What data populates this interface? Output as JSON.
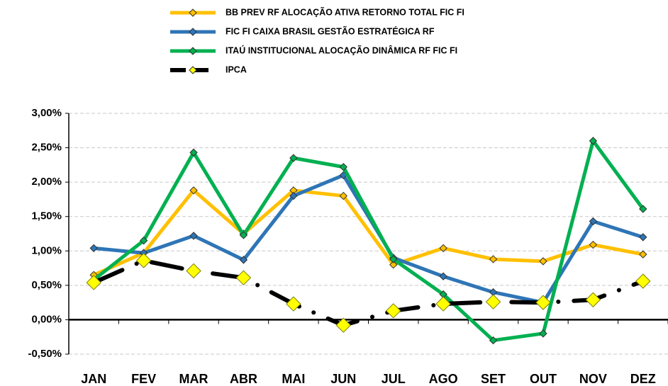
{
  "chart_data": {
    "type": "line",
    "categories": [
      "JAN",
      "FEV",
      "MAR",
      "ABR",
      "MAI",
      "JUN",
      "JUL",
      "AGO",
      "SET",
      "OUT",
      "NOV",
      "DEZ"
    ],
    "series": [
      {
        "name": "BB PREV RF ALOCAÇÃO ATIVA RETORNO TOTAL FIC FI",
        "color": "#ffc000",
        "values": [
          0.65,
          0.97,
          1.88,
          1.25,
          1.88,
          1.8,
          0.8,
          1.04,
          0.88,
          0.85,
          1.09,
          0.95
        ]
      },
      {
        "name": "FIC FI CAIXA BRASIL GESTÃO ESTRATÉGICA RF",
        "color": "#2e75b6",
        "values": [
          1.04,
          0.97,
          1.22,
          0.87,
          1.8,
          2.1,
          0.9,
          0.63,
          0.4,
          0.25,
          1.43,
          1.2
        ]
      },
      {
        "name": "ITAÚ INSTITUCIONAL ALOCAÇÃO DINÂMICA RF FIC FI",
        "color": "#00b050",
        "values": [
          0.58,
          1.15,
          2.43,
          1.23,
          2.35,
          2.22,
          0.88,
          0.37,
          -0.3,
          -0.2,
          2.6,
          1.61
        ]
      },
      {
        "name": "IPCA",
        "color": "#000000",
        "marker_color": "#ffff00",
        "dashed": true,
        "values": [
          0.54,
          0.86,
          0.71,
          0.61,
          0.23,
          -0.08,
          0.13,
          0.23,
          0.26,
          0.25,
          0.29,
          0.56
        ]
      }
    ],
    "ylim": [
      -0.5,
      3
    ],
    "yticks": [
      {
        "value": -0.5,
        "label": "-0,50%"
      },
      {
        "value": 0,
        "label": "0,00%"
      },
      {
        "value": 0.5,
        "label": "0,50%"
      },
      {
        "value": 1,
        "label": "1,00%"
      },
      {
        "value": 1.5,
        "label": "1,50%"
      },
      {
        "value": 2,
        "label": "2,00%"
      },
      {
        "value": 2.5,
        "label": "2,50%"
      },
      {
        "value": 3,
        "label": "3,00%"
      }
    ],
    "grid": true,
    "legend": "top"
  }
}
